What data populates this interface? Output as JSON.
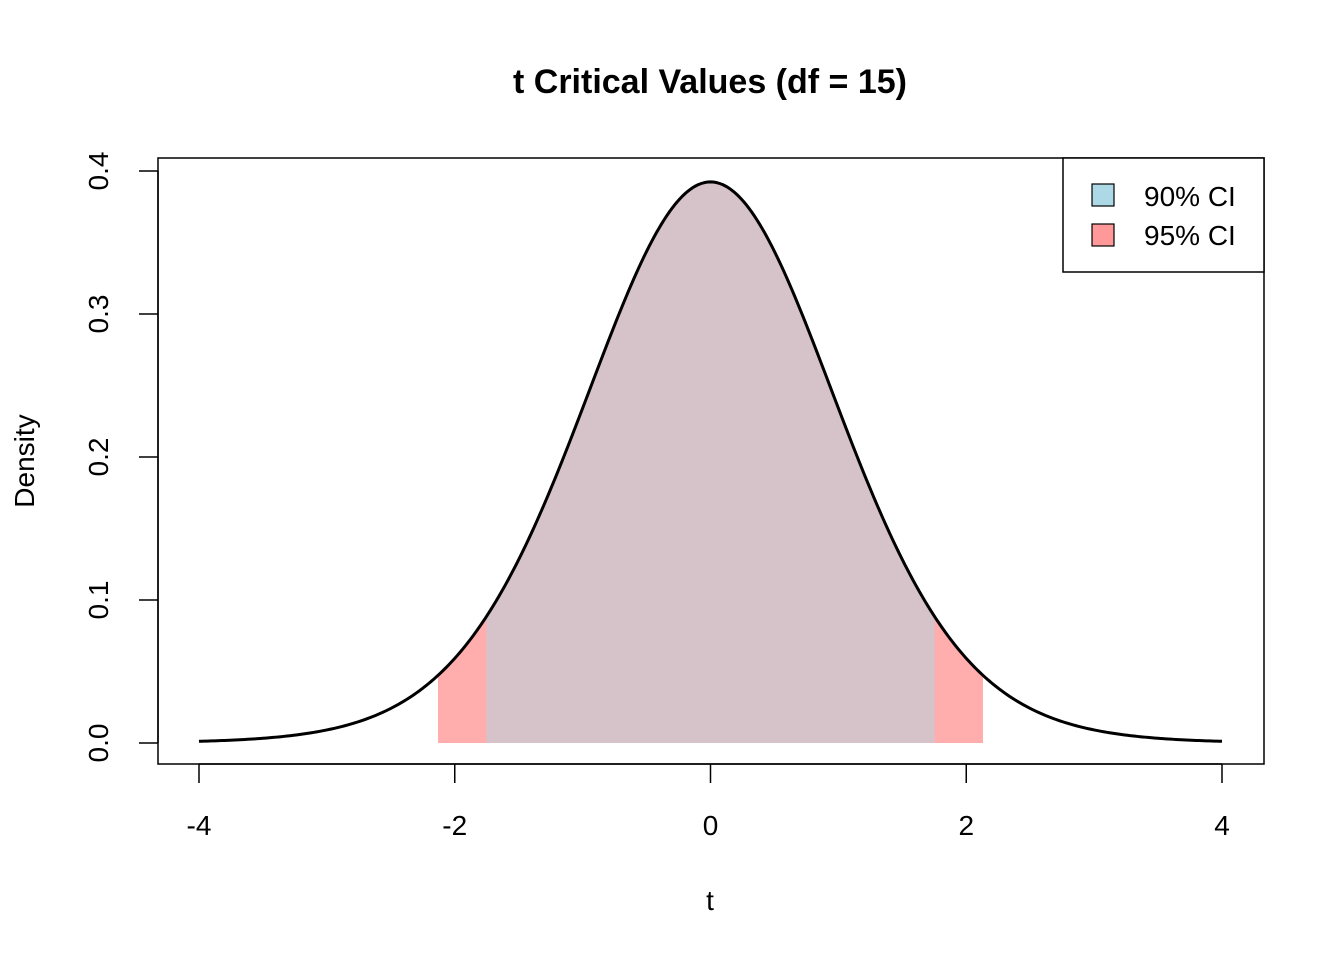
{
  "chart_data": {
    "type": "area",
    "title": "t Critical Values (df = 15)",
    "xlabel": "t",
    "ylabel": "Density",
    "df": 15,
    "xlim": [
      -4,
      4
    ],
    "ylim": [
      0,
      0.4
    ],
    "x_ticks": [
      -4,
      -2,
      0,
      2,
      4
    ],
    "y_ticks": [
      0.0,
      0.1,
      0.2,
      0.3,
      0.4
    ],
    "x_tick_labels": [
      "-4",
      "-2",
      "0",
      "2",
      "4"
    ],
    "y_tick_labels": [
      "0.0",
      "0.1",
      "0.2",
      "0.3",
      "0.4"
    ],
    "grid": false,
    "legend_position": "top-right",
    "series": [
      {
        "name": "90% CI",
        "interval": [
          -1.753,
          1.753
        ],
        "color": "#ADD8E6",
        "opacity": 0.5
      },
      {
        "name": "95% CI",
        "interval": [
          -2.131,
          2.131
        ],
        "color": "#FF9999",
        "opacity": 0.8
      }
    ],
    "curve_color": "#000000"
  }
}
